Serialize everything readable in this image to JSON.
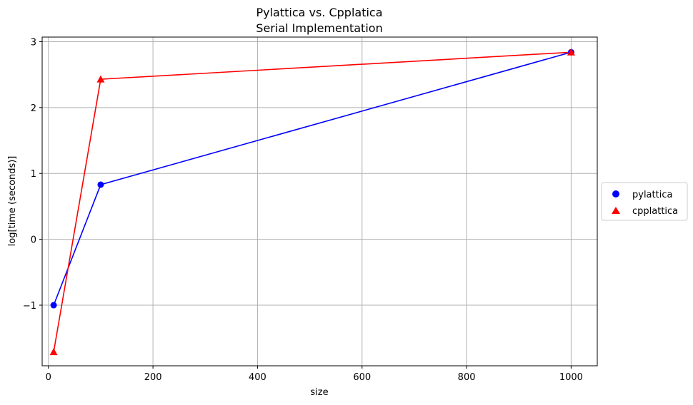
{
  "chart_data": {
    "type": "line",
    "title": "Pylattica vs. Cpplatica",
    "subtitle": "Serial Implementation",
    "xlabel": "size",
    "ylabel": "log[time (seconds)]",
    "xlim": [
      -12,
      1050
    ],
    "ylim": [
      -1.92,
      3.07
    ],
    "x_ticks": [
      0,
      200,
      400,
      600,
      800,
      1000
    ],
    "x_tick_labels": [
      "0",
      "200",
      "400",
      "600",
      "800",
      "1000"
    ],
    "y_ticks": [
      -1,
      0,
      1,
      2,
      3
    ],
    "y_tick_labels": [
      "−1",
      "0",
      "1",
      "2",
      "3"
    ],
    "grid": true,
    "legend_position": "right, outside plot",
    "series": [
      {
        "name": "pylattica",
        "color": "#0000ff",
        "marker": "circle",
        "x": [
          10,
          100,
          1000
        ],
        "y": [
          -1.0,
          0.83,
          2.84
        ]
      },
      {
        "name": "cpplattica",
        "color": "#ff0000",
        "marker": "triangle",
        "x": [
          10,
          100,
          1000
        ],
        "y": [
          -1.71,
          2.43,
          2.84
        ]
      }
    ]
  }
}
